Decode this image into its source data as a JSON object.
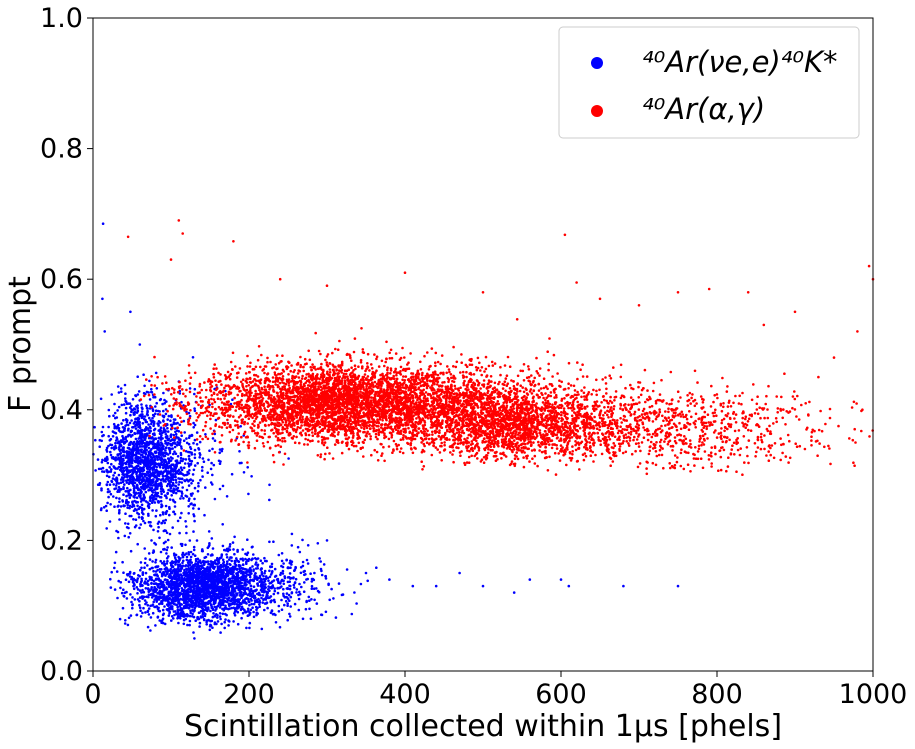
{
  "chart_data": {
    "type": "scatter",
    "title": "",
    "xlabel": "Scintillation collected within 1μs [phels]",
    "ylabel": "F prompt",
    "xlim": [
      0,
      1000
    ],
    "ylim": [
      0,
      1.0
    ],
    "xticks": [
      "0",
      "200",
      "400",
      "600",
      "800",
      "1000"
    ],
    "yticks": [
      "0.0",
      "0.2",
      "0.4",
      "0.6",
      "0.8",
      "1.0"
    ],
    "grid": false,
    "legend_position": "top-right",
    "series": [
      {
        "name": "⁴⁰Ar(νe,e)⁴⁰K*",
        "color": "#0000ff",
        "clusters": [
          {
            "x_center": 145,
            "y_center": 0.13,
            "x_spread": 55,
            "y_spread": 0.025,
            "x_range": [
              20,
              480
            ],
            "y_range": [
              0.05,
              0.25
            ],
            "points": 2600
          },
          {
            "x_center": 70,
            "y_center": 0.32,
            "x_spread": 35,
            "y_spread": 0.045,
            "x_range": [
              0,
              300
            ],
            "y_range": [
              0.18,
              0.5
            ],
            "points": 1800
          }
        ],
        "sample_points": [
          [
            13,
            0.685
          ],
          [
            12,
            0.57
          ],
          [
            15,
            0.52
          ],
          [
            48,
            0.55
          ],
          [
            60,
            0.5
          ],
          [
            75,
            0.2
          ],
          [
            130,
            0.05
          ],
          [
            350,
            0.15
          ],
          [
            380,
            0.14
          ],
          [
            410,
            0.13
          ],
          [
            440,
            0.13
          ],
          [
            470,
            0.15
          ],
          [
            500,
            0.13
          ],
          [
            540,
            0.12
          ],
          [
            560,
            0.14
          ],
          [
            600,
            0.14
          ],
          [
            610,
            0.13
          ],
          [
            680,
            0.13
          ],
          [
            750,
            0.13
          ],
          [
            255,
            0.21
          ],
          [
            300,
            0.2
          ]
        ]
      },
      {
        "name": "⁴⁰Ar(α,γ)",
        "color": "#ff0000",
        "clusters": [
          {
            "x_center": 340,
            "y_center": 0.41,
            "x_spread": 120,
            "y_spread": 0.03,
            "x_range": [
              60,
              1000
            ],
            "y_range": [
              0.3,
              0.56
            ],
            "points": 5000
          },
          {
            "x_center": 560,
            "y_center": 0.375,
            "x_spread": 90,
            "y_spread": 0.025,
            "x_range": [
              350,
              1000
            ],
            "y_range": [
              0.3,
              0.5
            ],
            "points": 2000
          },
          {
            "x_center": 800,
            "y_center": 0.37,
            "x_spread": 90,
            "y_spread": 0.03,
            "x_range": [
              650,
              1000
            ],
            "y_range": [
              0.3,
              0.5
            ],
            "points": 450
          }
        ],
        "sample_points": [
          [
            110,
            0.69
          ],
          [
            115,
            0.67
          ],
          [
            45,
            0.665
          ],
          [
            180,
            0.658
          ],
          [
            605,
            0.668
          ],
          [
            400,
            0.61
          ],
          [
            100,
            0.63
          ],
          [
            995,
            0.62
          ],
          [
            1000,
            0.6
          ],
          [
            790,
            0.585
          ],
          [
            840,
            0.58
          ],
          [
            750,
            0.58
          ],
          [
            980,
            0.52
          ],
          [
            900,
            0.55
          ],
          [
            650,
            0.57
          ],
          [
            700,
            0.56
          ],
          [
            240,
            0.6
          ],
          [
            300,
            0.59
          ],
          [
            500,
            0.58
          ],
          [
            620,
            0.595
          ],
          [
            860,
            0.53
          ],
          [
            950,
            0.48
          ],
          [
            930,
            0.45
          ]
        ]
      }
    ]
  }
}
